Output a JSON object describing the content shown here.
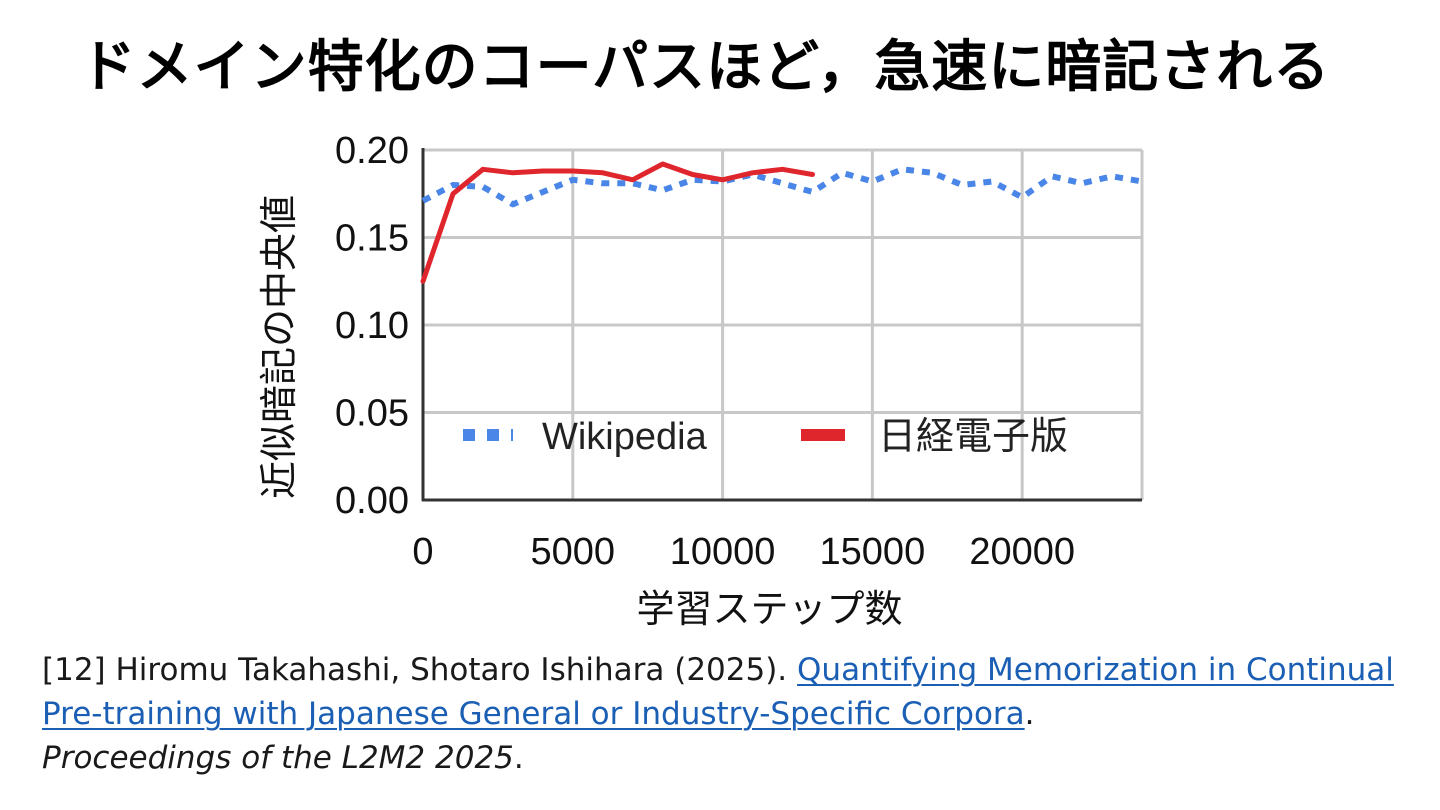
{
  "title": "ドメイン特化のコーパスほど，急速に暗記される",
  "chart_data": {
    "type": "line",
    "xlabel": "学習ステップ数",
    "ylabel": "近似暗記の中央値",
    "xlim": [
      0,
      24000
    ],
    "ylim": [
      0,
      0.2
    ],
    "x_ticks": [
      "0",
      "5000",
      "10000",
      "15000",
      "20000"
    ],
    "y_ticks": [
      "0.00",
      "0.05",
      "0.10",
      "0.15",
      "0.20"
    ],
    "grid": true,
    "legend_position": "inside-bottom",
    "series": [
      {
        "name": "Wikipedia",
        "color": "#4a86e8",
        "style": "dotted",
        "x": [
          0,
          1000,
          2000,
          3000,
          4000,
          5000,
          6000,
          7000,
          8000,
          9000,
          10000,
          11000,
          12000,
          13000,
          14000,
          15000,
          16000,
          17000,
          18000,
          19000,
          20000,
          21000,
          22000,
          23000,
          24000
        ],
        "y": [
          0.171,
          0.18,
          0.179,
          0.169,
          0.176,
          0.183,
          0.181,
          0.181,
          0.177,
          0.183,
          0.182,
          0.186,
          0.181,
          0.176,
          0.187,
          0.182,
          0.189,
          0.187,
          0.18,
          0.182,
          0.173,
          0.185,
          0.181,
          0.185,
          0.182
        ]
      },
      {
        "name": "日経電子版",
        "color": "#e0262d",
        "style": "solid",
        "x": [
          0,
          1000,
          2000,
          3000,
          4000,
          5000,
          6000,
          7000,
          8000,
          9000,
          10000,
          11000,
          12000,
          13000
        ],
        "y": [
          0.125,
          0.175,
          0.189,
          0.187,
          0.188,
          0.188,
          0.187,
          0.183,
          0.192,
          0.186,
          0.183,
          0.187,
          0.189,
          0.186
        ]
      }
    ]
  },
  "citation": {
    "prefix": "[12] Hiromu Takahashi, Shotaro Ishihara (2025). ",
    "link_text": "Quantifying Memorization in Continual Pre-training with Japanese General or Industry-Specific Corpora",
    "after_link": ".",
    "venue": "Proceedings of the L2M2 2025",
    "suffix": "."
  }
}
